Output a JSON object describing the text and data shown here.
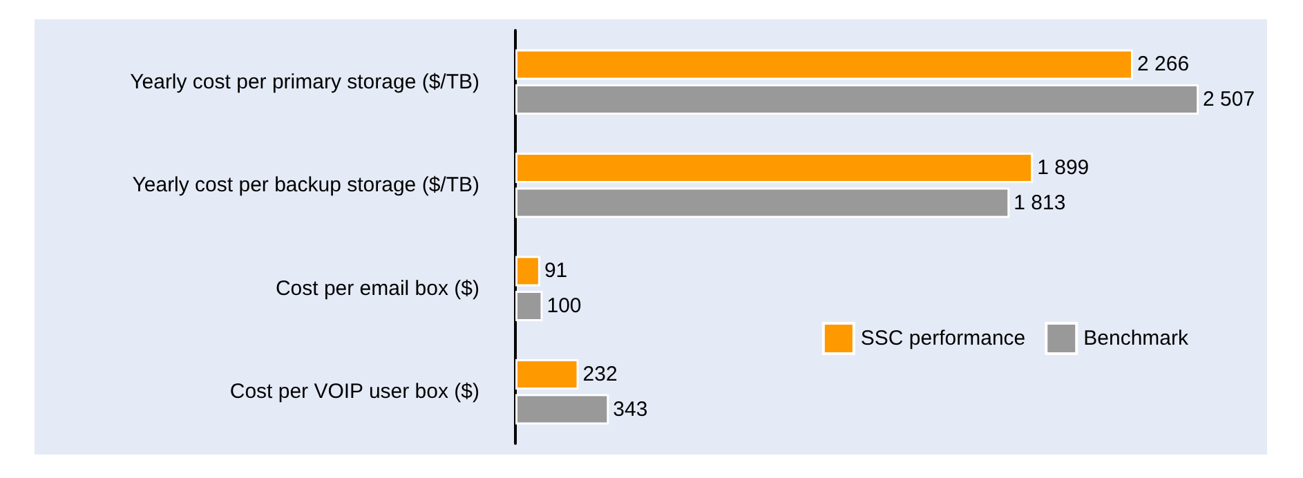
{
  "chart_data": {
    "type": "bar",
    "orientation": "horizontal",
    "categories": [
      "Yearly cost per primary storage ($/TB)",
      "Yearly cost per backup storage ($/TB)",
      "Cost per email box ($)",
      "Cost per VOIP user box ($)"
    ],
    "series": [
      {
        "name": "SSC performance",
        "color": "#ff9900",
        "values": [
          2266,
          1899,
          91,
          232
        ],
        "value_labels": [
          "2 266",
          "1 899",
          "91",
          "232"
        ]
      },
      {
        "name": "Benchmark",
        "color": "#999999",
        "values": [
          2507,
          1813,
          100,
          343
        ],
        "value_labels": [
          "2 507",
          "1 813",
          "100",
          "343"
        ]
      }
    ],
    "legend": "bottom right",
    "grid": false
  }
}
